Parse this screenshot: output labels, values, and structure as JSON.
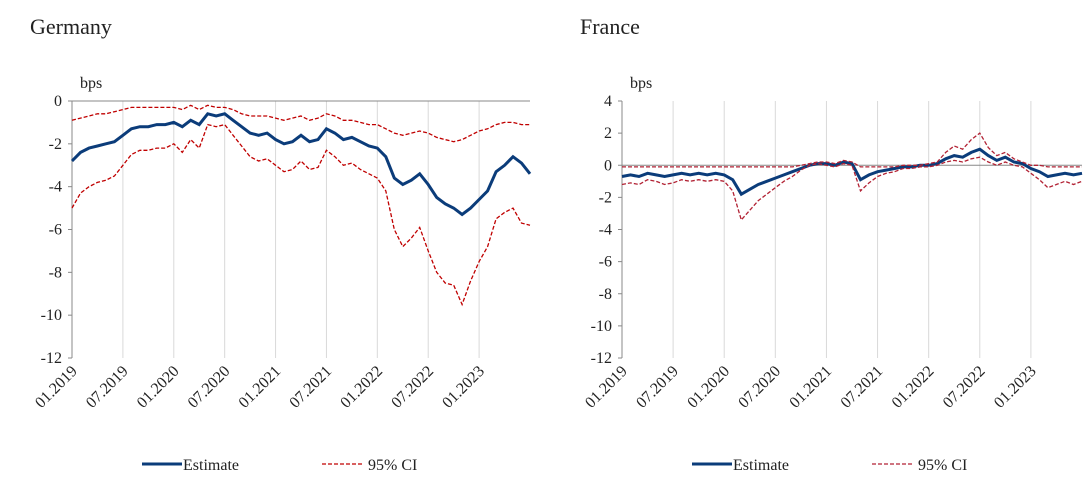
{
  "chart_data": [
    {
      "type": "line",
      "title": "Germany",
      "y_label": "bps",
      "x": [
        "01.2019",
        "02.2019",
        "03.2019",
        "04.2019",
        "05.2019",
        "06.2019",
        "07.2019",
        "08.2019",
        "09.2019",
        "10.2019",
        "11.2019",
        "12.2019",
        "01.2020",
        "02.2020",
        "03.2020",
        "04.2020",
        "05.2020",
        "06.2020",
        "07.2020",
        "08.2020",
        "09.2020",
        "10.2020",
        "11.2020",
        "12.2020",
        "01.2021",
        "02.2021",
        "03.2021",
        "04.2021",
        "05.2021",
        "06.2021",
        "07.2021",
        "08.2021",
        "09.2021",
        "10.2021",
        "11.2021",
        "12.2021",
        "01.2022",
        "02.2022",
        "03.2022",
        "04.2022",
        "05.2022",
        "06.2022",
        "07.2022",
        "08.2022",
        "09.2022",
        "10.2022",
        "11.2022",
        "12.2022",
        "01.2023",
        "02.2023",
        "03.2023",
        "04.2023",
        "05.2023",
        "06.2023",
        "07.2023"
      ],
      "xticks": [
        "01.2019",
        "07.2019",
        "01.2020",
        "07.2020",
        "01.2021",
        "07.2021",
        "01.2022",
        "07.2022",
        "01.2023"
      ],
      "ylim": [
        -12,
        0
      ],
      "yticks": [
        -12,
        -10,
        -8,
        -6,
        -4,
        -2,
        0
      ],
      "grid": true,
      "series": [
        {
          "name": "Estimate",
          "color": "#0b3c7a",
          "values": [
            -2.8,
            -2.4,
            -2.2,
            -2.1,
            -2.0,
            -1.9,
            -1.6,
            -1.3,
            -1.2,
            -1.2,
            -1.1,
            -1.1,
            -1.0,
            -1.2,
            -0.9,
            -1.1,
            -0.6,
            -0.7,
            -0.6,
            -0.9,
            -1.2,
            -1.5,
            -1.6,
            -1.5,
            -1.8,
            -2.0,
            -1.9,
            -1.6,
            -1.9,
            -1.8,
            -1.3,
            -1.5,
            -1.8,
            -1.7,
            -1.9,
            -2.1,
            -2.2,
            -2.6,
            -3.6,
            -3.9,
            -3.7,
            -3.4,
            -3.9,
            -4.5,
            -4.8,
            -5.0,
            -5.3,
            -5.0,
            -4.6,
            -4.2,
            -3.3,
            -3.0,
            -2.6,
            -2.9,
            -3.4
          ]
        },
        {
          "name": "95% CI",
          "color": "#c00000",
          "upper": [
            -0.9,
            -0.8,
            -0.7,
            -0.6,
            -0.6,
            -0.5,
            -0.4,
            -0.3,
            -0.3,
            -0.3,
            -0.3,
            -0.3,
            -0.3,
            -0.4,
            -0.2,
            -0.4,
            -0.2,
            -0.3,
            -0.3,
            -0.4,
            -0.6,
            -0.7,
            -0.7,
            -0.7,
            -0.8,
            -0.9,
            -0.8,
            -0.7,
            -0.9,
            -0.8,
            -0.6,
            -0.7,
            -0.9,
            -0.9,
            -1.0,
            -1.1,
            -1.1,
            -1.3,
            -1.5,
            -1.6,
            -1.5,
            -1.4,
            -1.5,
            -1.7,
            -1.8,
            -1.9,
            -1.8,
            -1.6,
            -1.4,
            -1.3,
            -1.1,
            -1.0,
            -1.0,
            -1.1,
            -1.1
          ],
          "lower": [
            -5.0,
            -4.3,
            -4.0,
            -3.8,
            -3.7,
            -3.5,
            -3.0,
            -2.5,
            -2.3,
            -2.3,
            -2.2,
            -2.2,
            -2.0,
            -2.4,
            -1.8,
            -2.2,
            -1.1,
            -1.2,
            -1.1,
            -1.6,
            -2.1,
            -2.6,
            -2.8,
            -2.7,
            -3.0,
            -3.3,
            -3.2,
            -2.8,
            -3.2,
            -3.1,
            -2.3,
            -2.6,
            -3.0,
            -2.9,
            -3.2,
            -3.4,
            -3.6,
            -4.2,
            -6.0,
            -6.8,
            -6.4,
            -5.9,
            -7.0,
            -8.0,
            -8.5,
            -8.6,
            -9.5,
            -8.4,
            -7.5,
            -6.8,
            -5.5,
            -5.2,
            -5.0,
            -5.7,
            -5.8
          ]
        }
      ]
    },
    {
      "type": "line",
      "title": "France",
      "y_label": "bps",
      "x": [
        "01.2019",
        "02.2019",
        "03.2019",
        "04.2019",
        "05.2019",
        "06.2019",
        "07.2019",
        "08.2019",
        "09.2019",
        "10.2019",
        "11.2019",
        "12.2019",
        "01.2020",
        "02.2020",
        "03.2020",
        "04.2020",
        "05.2020",
        "06.2020",
        "07.2020",
        "08.2020",
        "09.2020",
        "10.2020",
        "11.2020",
        "12.2020",
        "01.2021",
        "02.2021",
        "03.2021",
        "04.2021",
        "05.2021",
        "06.2021",
        "07.2021",
        "08.2021",
        "09.2021",
        "10.2021",
        "11.2021",
        "12.2021",
        "01.2022",
        "02.2022",
        "03.2022",
        "04.2022",
        "05.2022",
        "06.2022",
        "07.2022",
        "08.2022",
        "09.2022",
        "10.2022",
        "11.2022",
        "12.2022",
        "01.2023",
        "02.2023",
        "03.2023",
        "04.2023",
        "05.2023",
        "06.2023",
        "07.2023"
      ],
      "xticks": [
        "01.2019",
        "07.2019",
        "01.2020",
        "07.2020",
        "01.2021",
        "07.2021",
        "01.2022",
        "07.2022",
        "01.2023"
      ],
      "ylim": [
        -12,
        4
      ],
      "yticks": [
        -12,
        -10,
        -8,
        -6,
        -4,
        -2,
        0,
        2,
        4
      ],
      "grid": true,
      "series": [
        {
          "name": "Estimate",
          "color": "#0b3c7a",
          "values": [
            -0.7,
            -0.6,
            -0.7,
            -0.5,
            -0.6,
            -0.7,
            -0.6,
            -0.5,
            -0.6,
            -0.5,
            -0.6,
            -0.5,
            -0.6,
            -0.9,
            -1.8,
            -1.5,
            -1.2,
            -1.0,
            -0.8,
            -0.6,
            -0.4,
            -0.2,
            0.0,
            0.1,
            0.1,
            0.0,
            0.2,
            0.1,
            -0.9,
            -0.6,
            -0.4,
            -0.3,
            -0.2,
            -0.1,
            -0.1,
            0.0,
            0.0,
            0.1,
            0.4,
            0.6,
            0.5,
            0.8,
            1.0,
            0.6,
            0.3,
            0.5,
            0.2,
            0.1,
            -0.2,
            -0.4,
            -0.7,
            -0.6,
            -0.5,
            -0.6,
            -0.5
          ]
        },
        {
          "name": "95% CI",
          "color": "#b22234",
          "upper": [
            -0.1,
            -0.1,
            -0.1,
            -0.1,
            -0.1,
            -0.1,
            -0.1,
            -0.1,
            -0.1,
            -0.1,
            -0.1,
            -0.1,
            -0.1,
            -0.1,
            -0.1,
            -0.1,
            -0.1,
            -0.1,
            -0.1,
            -0.1,
            -0.1,
            0.0,
            0.1,
            0.2,
            0.2,
            0.1,
            0.3,
            0.2,
            -0.1,
            -0.1,
            -0.1,
            -0.1,
            -0.1,
            0.0,
            0.0,
            0.0,
            0.1,
            0.2,
            0.8,
            1.2,
            1.0,
            1.6,
            2.0,
            1.1,
            0.6,
            0.8,
            0.4,
            0.2,
            0.0,
            0.0,
            -0.1,
            -0.1,
            -0.1,
            -0.1,
            -0.1
          ],
          "lower": [
            -1.2,
            -1.1,
            -1.2,
            -0.9,
            -1.0,
            -1.2,
            -1.1,
            -0.9,
            -1.0,
            -0.9,
            -1.0,
            -0.9,
            -1.0,
            -1.6,
            -3.4,
            -2.8,
            -2.2,
            -1.8,
            -1.4,
            -1.0,
            -0.7,
            -0.3,
            0.0,
            0.1,
            0.0,
            -0.1,
            0.1,
            0.0,
            -1.6,
            -1.1,
            -0.7,
            -0.5,
            -0.4,
            -0.2,
            -0.2,
            -0.1,
            -0.1,
            0.0,
            0.2,
            0.3,
            0.2,
            0.4,
            0.5,
            0.2,
            0.0,
            0.2,
            0.0,
            -0.1,
            -0.5,
            -0.9,
            -1.4,
            -1.2,
            -1.0,
            -1.2,
            -1.0
          ]
        }
      ]
    }
  ]
}
